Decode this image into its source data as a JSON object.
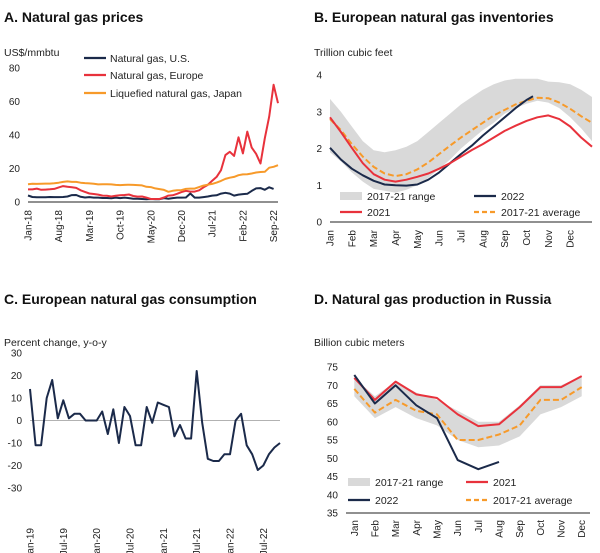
{
  "colors": {
    "navy": "#1b2a4a",
    "red": "#e8323c",
    "orange": "#f79a2a",
    "band": "#d9d9d9",
    "zero": "#999999"
  },
  "chart_data": [
    {
      "id": "A",
      "type": "line",
      "title": "A. Natural gas prices",
      "ylabel": "US$/mmbtu",
      "ylim": [
        0,
        80
      ],
      "yticks": [
        0,
        20,
        40,
        60,
        80
      ],
      "xticks": [
        "Jan-18",
        "Aug-18",
        "Mar-19",
        "Oct-19",
        "May-20",
        "Dec-20",
        "Jul-21",
        "Feb-22",
        "Sep-22"
      ],
      "tick_index": [
        0,
        7,
        14,
        21,
        28,
        35,
        42,
        49,
        56
      ],
      "series": [
        {
          "name": "Natural gas, U.S.",
          "color": "navy",
          "values": [
            3.9,
            3.0,
            2.8,
            2.8,
            2.8,
            3.0,
            2.9,
            2.9,
            3.0,
            3.3,
            4.1,
            4.2,
            3.1,
            2.7,
            2.9,
            2.6,
            2.6,
            2.4,
            2.4,
            2.2,
            2.6,
            2.3,
            2.6,
            2.3,
            2.0,
            1.9,
            1.8,
            1.7,
            1.8,
            1.6,
            1.7,
            2.3,
            2.0,
            2.3,
            2.6,
            2.6,
            2.7,
            5.1,
            2.6,
            2.6,
            2.9,
            3.3,
            3.8,
            4.0,
            5.0,
            5.5,
            5.0,
            3.8,
            4.4,
            4.7,
            4.9,
            6.6,
            8.1,
            8.3,
            7.3,
            8.8,
            7.8
          ]
        },
        {
          "name": "Natural gas, Europe",
          "color": "red",
          "values": [
            7.5,
            7.5,
            8.0,
            7.3,
            7.4,
            7.6,
            7.8,
            8.7,
            9.5,
            9.1,
            8.8,
            8.4,
            7.0,
            6.0,
            5.1,
            4.8,
            4.4,
            3.8,
            3.7,
            3.3,
            3.7,
            4.0,
            4.2,
            4.5,
            3.6,
            3.2,
            3.3,
            2.6,
            1.8,
            1.8,
            1.8,
            2.7,
            3.8,
            4.0,
            4.9,
            5.9,
            6.7,
            6.2,
            6.2,
            7.0,
            8.7,
            10.2,
            12.7,
            15.0,
            19.0,
            28.0,
            30.0,
            27.5,
            38.6,
            29.0,
            42.0,
            32.5,
            28.8,
            23.0,
            38.0,
            51.0,
            70.0,
            59.0
          ]
        },
        {
          "name": "Liquefied natural gas, Japan",
          "color": "orange",
          "values": [
            10.6,
            10.9,
            10.8,
            10.9,
            11.0,
            11.0,
            11.2,
            11.5,
            12.0,
            12.3,
            12.0,
            12.0,
            11.5,
            11.3,
            11.1,
            10.9,
            10.5,
            10.6,
            10.6,
            10.5,
            10.2,
            10.1,
            10.2,
            10.3,
            10.2,
            10.1,
            9.9,
            9.1,
            8.9,
            8.1,
            7.7,
            7.2,
            6.1,
            6.7,
            7.0,
            7.1,
            7.8,
            8.0,
            8.0,
            8.9,
            9.8,
            10.3,
            10.8,
            11.6,
            12.6,
            13.8,
            14.5,
            15.0,
            16.0,
            16.5,
            16.6,
            17.0,
            17.6,
            17.9,
            18.0,
            20.5,
            21.0,
            22.0
          ]
        }
      ]
    },
    {
      "id": "B",
      "type": "line",
      "title": "B. European natural gas inventories",
      "ylabel": "Trillion cubic feet",
      "ylim": [
        0,
        4
      ],
      "yticks": [
        0,
        1,
        2,
        3,
        4
      ],
      "xticks": [
        "Jan",
        "Feb",
        "Mar",
        "Apr",
        "May",
        "Jun",
        "Jul",
        "Aug",
        "Sep",
        "Oct",
        "Nov",
        "Dec"
      ],
      "x": [
        0,
        0.5,
        1,
        1.5,
        2,
        2.5,
        3,
        3.5,
        4,
        4.5,
        5,
        5.5,
        6,
        6.5,
        7,
        7.5,
        8,
        8.5,
        9,
        9.5,
        10,
        10.5,
        11,
        11.5,
        12
      ],
      "band": {
        "name": "2017-21 range",
        "low": [
          1.9,
          1.65,
          1.35,
          1.1,
          0.9,
          0.85,
          0.8,
          0.88,
          1.0,
          1.2,
          1.45,
          1.7,
          2.0,
          2.25,
          2.5,
          2.7,
          2.95,
          3.1,
          3.22,
          3.3,
          3.25,
          3.1,
          2.85,
          2.55,
          2.2
        ],
        "high": [
          3.35,
          3.0,
          2.6,
          2.2,
          1.95,
          1.9,
          1.95,
          2.05,
          2.2,
          2.45,
          2.7,
          2.95,
          3.2,
          3.4,
          3.6,
          3.75,
          3.85,
          3.9,
          3.9,
          3.9,
          3.82,
          3.8,
          3.75,
          3.6,
          3.4
        ]
      },
      "series": [
        {
          "name": "2022",
          "color": "navy",
          "style": "solid",
          "x": [
            0,
            0.5,
            1,
            1.5,
            2,
            2.5,
            3,
            3.5,
            4,
            4.5,
            5,
            5.5,
            6,
            6.5,
            7,
            7.5,
            8,
            8.5,
            9,
            9.3
          ],
          "values": [
            2.02,
            1.7,
            1.45,
            1.27,
            1.12,
            1.02,
            1.0,
            0.99,
            1.02,
            1.15,
            1.35,
            1.6,
            1.85,
            2.08,
            2.35,
            2.6,
            2.85,
            3.1,
            3.32,
            3.42
          ]
        },
        {
          "name": "2021",
          "color": "red",
          "style": "solid",
          "x": [
            0,
            0.5,
            1,
            1.5,
            2,
            2.5,
            3,
            3.5,
            4,
            4.5,
            5,
            5.5,
            6,
            6.5,
            7,
            7.5,
            8,
            8.5,
            9,
            9.5,
            10,
            10.5,
            11,
            11.5,
            12
          ],
          "values": [
            2.85,
            2.45,
            2.02,
            1.6,
            1.3,
            1.15,
            1.1,
            1.15,
            1.23,
            1.32,
            1.45,
            1.6,
            1.78,
            1.96,
            2.12,
            2.3,
            2.48,
            2.62,
            2.75,
            2.85,
            2.9,
            2.8,
            2.6,
            2.3,
            2.05
          ]
        },
        {
          "name": "2017-21 average",
          "color": "orange",
          "style": "dashed",
          "x": [
            0,
            0.5,
            1,
            1.5,
            2,
            2.5,
            3,
            3.5,
            4,
            4.5,
            5,
            5.5,
            6,
            6.5,
            7,
            7.5,
            8,
            8.5,
            9,
            9.5,
            10,
            10.5,
            11,
            11.5,
            12
          ],
          "values": [
            2.8,
            2.5,
            2.12,
            1.78,
            1.5,
            1.32,
            1.25,
            1.3,
            1.43,
            1.62,
            1.85,
            2.08,
            2.3,
            2.5,
            2.7,
            2.9,
            3.05,
            3.2,
            3.3,
            3.38,
            3.37,
            3.25,
            3.08,
            2.88,
            2.7
          ]
        }
      ],
      "legend": [
        "2017-21 range",
        "2022",
        "2021",
        "2017-21 average"
      ]
    },
    {
      "id": "C",
      "type": "line",
      "title": "C. European natural gas consumption",
      "ylabel": "Percent change, y-o-y",
      "ylim": [
        -30,
        30
      ],
      "yticks": [
        -30,
        -20,
        -10,
        0,
        10,
        20,
        30
      ],
      "xticks": [
        "Jan-19",
        "Jul-19",
        "Jan-20",
        "Jul-20",
        "Jan-21",
        "Jul-21",
        "Jan-22",
        "Jul-22"
      ],
      "tick_index": [
        0,
        6,
        12,
        18,
        24,
        30,
        36,
        42
      ],
      "series": [
        {
          "name": "European natural gas consumption",
          "color": "navy",
          "values": [
            14,
            -11,
            -11,
            10,
            18,
            1,
            9,
            1,
            3,
            3,
            0,
            0,
            0,
            4,
            -6,
            5,
            -10,
            6,
            2,
            -11,
            -11,
            6,
            -1,
            8,
            7,
            6,
            -7,
            -2,
            -8,
            -8,
            22,
            -1,
            -17,
            -18,
            -18,
            -15,
            -15,
            0,
            3,
            -11,
            -15,
            -22,
            -20,
            -15,
            -12,
            -10
          ]
        }
      ]
    },
    {
      "id": "D",
      "type": "line",
      "title": "D. Natural gas production in Russia",
      "ylabel": "Billion cubic meters",
      "ylim": [
        35,
        75
      ],
      "yticks": [
        35,
        40,
        45,
        50,
        55,
        60,
        65,
        70,
        75
      ],
      "xticks": [
        "Jan",
        "Feb",
        "Mar",
        "Apr",
        "May",
        "Jun",
        "Jul",
        "Aug",
        "Sep",
        "Oct",
        "Nov",
        "Dec"
      ],
      "band": {
        "name": "2017-21 range",
        "low": [
          67,
          61,
          64,
          61,
          59,
          55,
          53,
          53.5,
          56,
          62,
          64,
          67
        ],
        "high": [
          72,
          67,
          71,
          68,
          66,
          63,
          60,
          60,
          64.5,
          70,
          70,
          72.5
        ]
      },
      "series": [
        {
          "name": "2022",
          "color": "navy",
          "style": "solid",
          "x": [
            0,
            1,
            2,
            3,
            4,
            5,
            6,
            7
          ],
          "values": [
            72.8,
            65,
            70,
            64.5,
            61,
            49.5,
            47,
            49
          ]
        },
        {
          "name": "2021",
          "color": "red",
          "style": "solid",
          "x": [
            0,
            1,
            2,
            3,
            4,
            5,
            6,
            7,
            8,
            9,
            10,
            11
          ],
          "values": [
            72,
            66,
            71,
            67.5,
            66.5,
            62,
            58.8,
            59.3,
            64,
            69.5,
            69.5,
            72.5
          ]
        },
        {
          "name": "2017-21 average",
          "color": "orange",
          "style": "dashed",
          "x": [
            0,
            1,
            2,
            3,
            4,
            5,
            6,
            7,
            8,
            9,
            10,
            11
          ],
          "values": [
            69,
            62.5,
            66,
            63,
            62,
            55,
            55,
            56.5,
            59,
            66,
            66,
            69.5
          ]
        }
      ],
      "legend": [
        "2017-21 range",
        "2021",
        "2022",
        "2017-21 average"
      ]
    }
  ]
}
